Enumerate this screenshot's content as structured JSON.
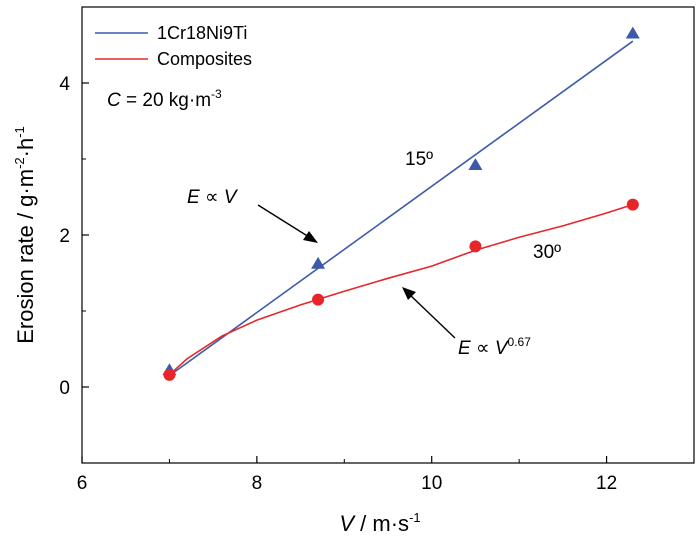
{
  "chart_data": {
    "type": "scatter",
    "xlabel": {
      "var": "V",
      "sep": " / ",
      "unit": "m·s",
      "exp": "-1"
    },
    "ylabel": {
      "text": "Erosion rate / g·m",
      "exp1": "-2",
      "mid": "·h",
      "exp2": "-1"
    },
    "xlim": [
      6,
      13
    ],
    "ylim": [
      -1,
      5
    ],
    "x_ticks": [
      "6",
      "8",
      "10",
      "12"
    ],
    "y_ticks": [
      "0",
      "2",
      "4"
    ],
    "grid": false,
    "legend_position": "top-left",
    "series": [
      {
        "name": "1Cr18Ni9Ti",
        "marker": "triangle",
        "color": "#3b5ba9",
        "x": [
          7.0,
          8.7,
          10.5,
          12.3
        ],
        "y": [
          0.22,
          1.62,
          2.92,
          4.65
        ],
        "fit": {
          "type": "linear",
          "x": [
            7.0,
            12.3
          ],
          "y": [
            0.15,
            4.55
          ]
        }
      },
      {
        "name": "Composites",
        "marker": "circle",
        "color": "#e8262a",
        "x": [
          7.0,
          8.7,
          10.5,
          12.3
        ],
        "y": [
          0.16,
          1.15,
          1.85,
          2.4
        ],
        "fit": {
          "type": "power",
          "x": [
            7.0,
            7.2,
            7.6,
            8.0,
            8.5,
            9.0,
            9.5,
            10.0,
            10.5,
            11.0,
            11.5,
            12.0,
            12.3
          ],
          "y": [
            0.16,
            0.37,
            0.67,
            0.88,
            1.08,
            1.26,
            1.43,
            1.59,
            1.8,
            1.97,
            2.12,
            2.29,
            2.4
          ]
        }
      }
    ],
    "annotations": {
      "conc": {
        "var": "C",
        "rest": " = 20 kg·m",
        "exp": "-3"
      },
      "angle1": "15º",
      "angle2": "30º",
      "law1": {
        "E": "E",
        "prop": " ∝ ",
        "V": "V"
      },
      "law2": {
        "E": "E",
        "prop": " ∝ ",
        "V": "V",
        "exp": "0.67"
      }
    }
  }
}
